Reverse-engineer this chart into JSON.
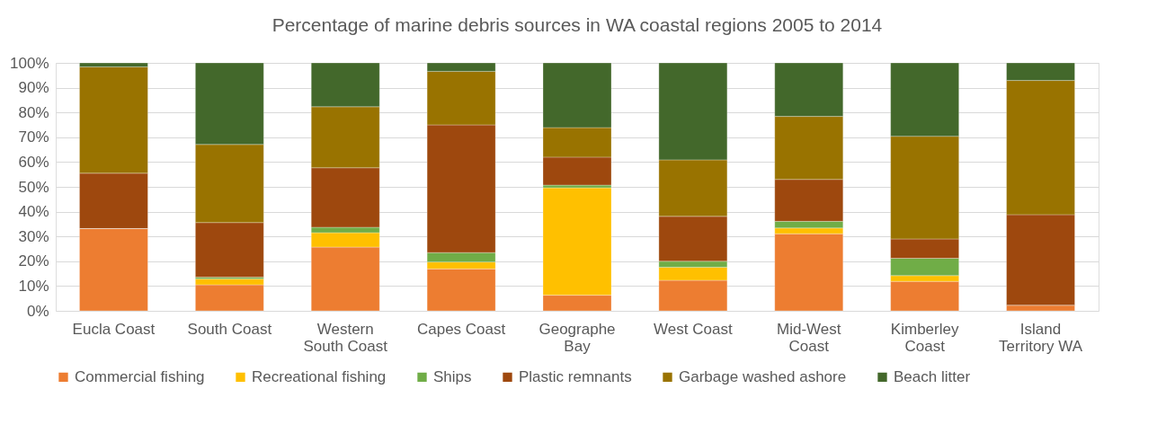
{
  "chart_data": {
    "type": "bar",
    "title": "Percentage of marine debris sources in WA coastal regions 2005 to 2014",
    "categories": [
      "Eucla Coast",
      "South Coast",
      "Western South Coast",
      "Capes Coast",
      "Geographe Bay",
      "West Coast",
      "Mid-West Coast",
      "Kimberley Coast",
      "Island Territory WA"
    ],
    "stacked": true,
    "series": [
      {
        "name": "Commercial fishing",
        "color": "#ed7d31",
        "values": [
          33.2,
          10.5,
          25.7,
          16.9,
          6.3,
          12.3,
          31.1,
          11.9,
          2.3
        ]
      },
      {
        "name": "Recreational fishing",
        "color": "#ffc000",
        "values": [
          0,
          2.4,
          5.8,
          2.8,
          43.3,
          5.3,
          2.3,
          2.3,
          0
        ]
      },
      {
        "name": "Ships",
        "color": "#70ad47",
        "values": [
          0,
          0.7,
          2.2,
          3.8,
          1.1,
          2.4,
          2.7,
          7.0,
          0
        ]
      },
      {
        "name": "Plastic remnants",
        "color": "#9e480e",
        "values": [
          22.3,
          22.0,
          24.0,
          51.5,
          11.3,
          18.1,
          16.9,
          7.8,
          36.5
        ]
      },
      {
        "name": "Garbage washed ashore",
        "color": "#997300",
        "values": [
          42.9,
          31.5,
          24.6,
          21.6,
          11.9,
          22.8,
          25.4,
          41.4,
          54.1
        ]
      },
      {
        "name": "Beach litter",
        "color": "#43682b",
        "values": [
          1.6,
          32.9,
          17.7,
          3.4,
          26.1,
          39.1,
          21.6,
          29.6,
          7.1
        ]
      }
    ],
    "ylim": [
      0,
      100
    ],
    "yticks": [
      {
        "value": 0,
        "label": "0%"
      },
      {
        "value": 10,
        "label": "10%"
      },
      {
        "value": 20,
        "label": "20%"
      },
      {
        "value": 30,
        "label": "30%"
      },
      {
        "value": 40,
        "label": "40%"
      },
      {
        "value": 50,
        "label": "50%"
      },
      {
        "value": 60,
        "label": "60%"
      },
      {
        "value": 70,
        "label": "70%"
      },
      {
        "value": 80,
        "label": "80%"
      },
      {
        "value": 90,
        "label": "90%"
      },
      {
        "value": 100,
        "label": "100%"
      }
    ],
    "grid": "y",
    "legend": "bottom"
  }
}
